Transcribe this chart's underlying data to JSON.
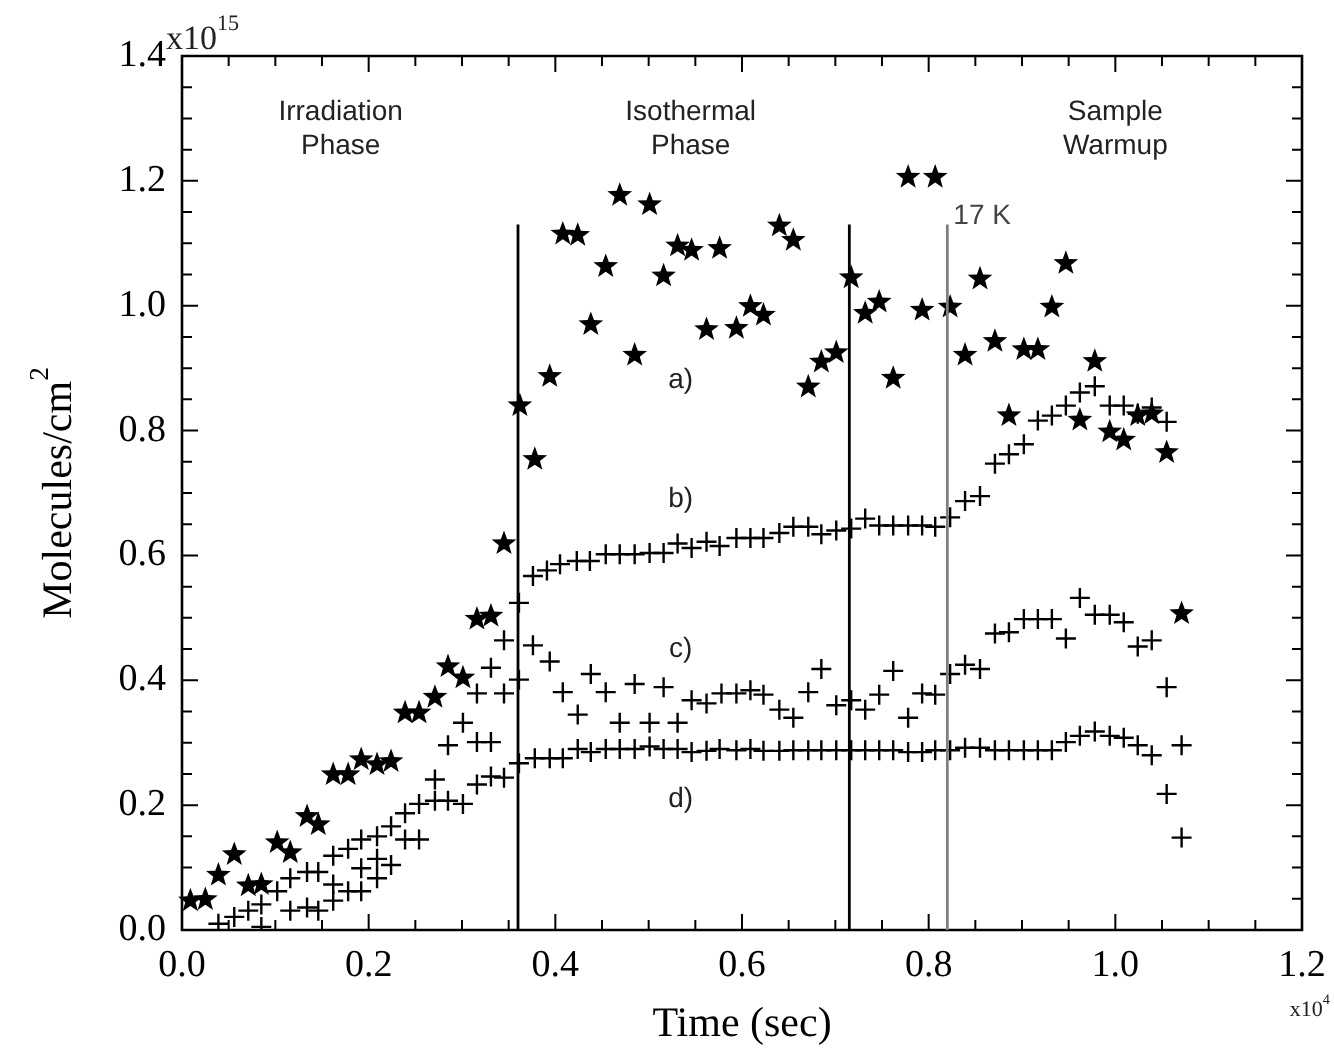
{
  "chart_data": {
    "type": "scatter",
    "xlabel": "Time (sec)",
    "ylabel": "Molecules/cm$^{2}$",
    "xlim": [
      0,
      1.2
    ],
    "ylim": [
      0,
      1.4
    ],
    "xticks": [
      {
        "value": 0,
        "label": "0.0"
      },
      {
        "value": 0.05,
        "label": null
      },
      {
        "value": 0.1,
        "label": null
      },
      {
        "value": 0.15,
        "label": null
      },
      0.2,
      {
        "value": 0.25,
        "label": null
      },
      {
        "value": 0.3,
        "label": null
      },
      {
        "value": 0.35,
        "label": null
      },
      0.4,
      {
        "value": 0.45,
        "label": null
      },
      {
        "value": 0.5,
        "label": null
      },
      {
        "value": 0.55,
        "label": null
      },
      0.6,
      {
        "value": 0.65,
        "label": null
      },
      {
        "value": 0.7,
        "label": null
      },
      {
        "value": 0.75,
        "label": null
      },
      0.8,
      {
        "value": 0.85,
        "label": null
      },
      {
        "value": 0.9,
        "label": null
      },
      {
        "value": 0.95,
        "label": null
      },
      {
        "value": 1.0,
        "label": "1.0"
      },
      {
        "value": 1.05,
        "label": null
      },
      {
        "value": 1.1,
        "label": null
      },
      {
        "value": 1.15,
        "label": null
      },
      1.2
    ],
    "yticks": [
      {
        "value": 0,
        "label": "0.0"
      },
      {
        "value": 0.05,
        "label": null
      },
      {
        "value": 0.1,
        "label": null
      },
      {
        "value": 0.15,
        "label": null
      },
      0.2,
      {
        "value": 0.25,
        "label": null
      },
      {
        "value": 0.3,
        "label": null
      },
      {
        "value": 0.35,
        "label": null
      },
      0.4,
      {
        "value": 0.45,
        "label": null
      },
      {
        "value": 0.5,
        "label": null
      },
      {
        "value": 0.55,
        "label": null
      },
      0.6,
      {
        "value": 0.65,
        "label": null
      },
      {
        "value": 0.7,
        "label": null
      },
      {
        "value": 0.75,
        "label": null
      },
      0.8,
      {
        "value": 0.85,
        "label": null
      },
      {
        "value": 0.9,
        "label": null
      },
      {
        "value": 0.95,
        "label": null
      },
      {
        "value": 1.0,
        "label": "1.0"
      },
      {
        "value": 1.05,
        "label": null
      },
      {
        "value": 1.1,
        "label": null
      },
      {
        "value": 1.15,
        "label": null
      },
      1.2,
      {
        "value": 1.25,
        "label": null
      },
      {
        "value": 1.3,
        "label": null
      },
      {
        "value": 1.35,
        "label": null
      },
      1.4
    ],
    "grid": false,
    "legend": false,
    "ref_lines": [
      {
        "axis": "x",
        "value": 0.36,
        "label": null,
        "color": "#000000"
      },
      {
        "axis": "x",
        "value": 0.715,
        "label": null,
        "color": "#000000"
      },
      {
        "axis": "x",
        "value": 0.82,
        "label": "17 K",
        "color": "#808080"
      }
    ],
    "annotations": [
      "Irradiation Phase",
      "Isothermal Phase",
      "Sample Warmup",
      "x10$^{4}$",
      "x10$^{15}$"
    ],
    "series": [
      {
        "name": "a)",
        "color": "#000000",
        "marker": "star",
        "x": [
          0.009,
          0.025,
          0.039,
          0.056,
          0.071,
          0.085,
          0.102,
          0.116,
          0.134,
          0.146,
          0.162,
          0.178,
          0.192,
          0.209,
          0.224,
          0.239,
          0.254,
          0.271,
          0.285,
          0.301,
          0.316,
          0.331,
          0.345,
          0.362,
          0.378,
          0.394,
          0.408,
          0.424,
          0.438,
          0.454,
          0.469,
          0.485,
          0.501,
          0.516,
          0.531,
          0.546,
          0.562,
          0.576,
          0.594,
          0.609,
          0.623,
          0.64,
          0.655,
          0.671,
          0.685,
          0.701,
          0.717,
          0.732,
          0.747,
          0.762,
          0.778,
          0.793,
          0.807,
          0.823,
          0.839,
          0.855,
          0.871,
          0.886,
          0.902,
          0.917,
          0.932,
          0.947,
          0.962,
          0.978,
          0.994,
          1.009,
          1.024,
          1.039,
          1.055,
          1.071
        ],
        "values": [
          0.047,
          0.049,
          0.088,
          0.121,
          0.071,
          0.073,
          0.14,
          0.124,
          0.182,
          0.169,
          0.249,
          0.249,
          0.273,
          0.265,
          0.27,
          0.348,
          0.348,
          0.373,
          0.422,
          0.404,
          0.498,
          0.503,
          0.619,
          0.84,
          0.754,
          0.887,
          1.115,
          1.113,
          0.97,
          1.063,
          1.177,
          0.921,
          1.162,
          1.048,
          1.096,
          1.089,
          0.962,
          1.092,
          0.964,
          0.999,
          0.985,
          1.128,
          1.105,
          0.87,
          0.91,
          0.925,
          1.045,
          0.988,
          1.006,
          0.884,
          1.206,
          0.993,
          1.206,
          0.998,
          0.921,
          1.043,
          0.943,
          0.824,
          0.93,
          0.93,
          0.998,
          1.068,
          0.817,
          0.911,
          0.798,
          0.785,
          0.824,
          0.827,
          0.765,
          0.507
        ]
      },
      {
        "name": "b)",
        "color": "#000000",
        "marker": "cross",
        "x": [
          0.039,
          0.056,
          0.071,
          0.085,
          0.102,
          0.116,
          0.134,
          0.146,
          0.162,
          0.178,
          0.192,
          0.209,
          0.224,
          0.239,
          0.254,
          0.271,
          0.285,
          0.301,
          0.316,
          0.331,
          0.345,
          0.361,
          0.376,
          0.391,
          0.405,
          0.423,
          0.437,
          0.454,
          0.469,
          0.485,
          0.501,
          0.516,
          0.531,
          0.546,
          0.562,
          0.576,
          0.594,
          0.609,
          0.623,
          0.64,
          0.655,
          0.671,
          0.685,
          0.701,
          0.717,
          0.732,
          0.747,
          0.762,
          0.778,
          0.793,
          0.807,
          0.823,
          0.839,
          0.855,
          0.871,
          0.886,
          0.902,
          0.917,
          0.932,
          0.947,
          0.962,
          0.978,
          0.994,
          1.009,
          1.024,
          1.039,
          1.055
        ],
        "values": [
          0.01,
          0.021,
          0.031,
          0.041,
          0.062,
          0.083,
          0.093,
          0.093,
          0.119,
          0.13,
          0.145,
          0.15,
          0.166,
          0.187,
          0.202,
          0.241,
          0.296,
          0.332,
          0.379,
          0.42,
          0.464,
          0.524,
          0.567,
          0.576,
          0.586,
          0.591,
          0.591,
          0.602,
          0.602,
          0.602,
          0.604,
          0.604,
          0.619,
          0.612,
          0.622,
          0.615,
          0.628,
          0.628,
          0.628,
          0.636,
          0.646,
          0.646,
          0.634,
          0.64,
          0.643,
          0.659,
          0.648,
          0.648,
          0.648,
          0.648,
          0.646,
          0.661,
          0.687,
          0.695,
          0.747,
          0.762,
          0.778,
          0.816,
          0.824,
          0.84,
          0.861,
          0.871,
          0.84,
          0.84,
          0.827,
          0.837,
          0.814
        ]
      },
      {
        "name": "c)",
        "color": "#000000",
        "marker": "cross",
        "x": [
          0.085,
          0.116,
          0.134,
          0.146,
          0.162,
          0.178,
          0.192,
          0.209,
          0.224,
          0.239,
          0.254,
          0.285,
          0.316,
          0.331,
          0.345,
          0.361,
          0.376,
          0.394,
          0.408,
          0.424,
          0.438,
          0.454,
          0.469,
          0.485,
          0.501,
          0.516,
          0.531,
          0.546,
          0.562,
          0.578,
          0.594,
          0.609,
          0.623,
          0.64,
          0.655,
          0.671,
          0.685,
          0.701,
          0.717,
          0.732,
          0.747,
          0.762,
          0.778,
          0.793,
          0.807,
          0.823,
          0.839,
          0.855,
          0.871,
          0.886,
          0.902,
          0.917,
          0.932,
          0.947,
          0.962,
          0.978,
          0.994,
          1.009,
          1.024,
          1.039,
          1.055,
          1.071
        ],
        "values": [
          0.005,
          0.031,
          0.036,
          0.031,
          0.073,
          0.062,
          0.099,
          0.114,
          0.104,
          0.145,
          0.145,
          0.207,
          0.301,
          0.301,
          0.379,
          0.401,
          0.456,
          0.43,
          0.381,
          0.345,
          0.41,
          0.381,
          0.332,
          0.394,
          0.332,
          0.389,
          0.332,
          0.368,
          0.363,
          0.379,
          0.379,
          0.384,
          0.377,
          0.353,
          0.34,
          0.381,
          0.418,
          0.36,
          0.368,
          0.353,
          0.377,
          0.415,
          0.34,
          0.379,
          0.377,
          0.41,
          0.425,
          0.418,
          0.475,
          0.477,
          0.498,
          0.498,
          0.498,
          0.467,
          0.532,
          0.505,
          0.505,
          0.493,
          0.454,
          0.464,
          0.389,
          0.148
        ]
      },
      {
        "name": "d)",
        "color": "#000000",
        "marker": "cross",
        "x": [
          0.162,
          0.192,
          0.209,
          0.271,
          0.301,
          0.316,
          0.331,
          0.345,
          0.361,
          0.378,
          0.394,
          0.408,
          0.424,
          0.438,
          0.454,
          0.469,
          0.485,
          0.501,
          0.516,
          0.531,
          0.546,
          0.562,
          0.576,
          0.594,
          0.609,
          0.623,
          0.64,
          0.655,
          0.671,
          0.685,
          0.701,
          0.717,
          0.732,
          0.747,
          0.762,
          0.778,
          0.793,
          0.807,
          0.823,
          0.839,
          0.855,
          0.871,
          0.886,
          0.902,
          0.917,
          0.932,
          0.947,
          0.962,
          0.978,
          0.994,
          1.009,
          1.024,
          1.039,
          1.055,
          1.071
        ],
        "values": [
          0.047,
          0.062,
          0.083,
          0.207,
          0.202,
          0.233,
          0.246,
          0.244,
          0.267,
          0.275,
          0.275,
          0.275,
          0.29,
          0.285,
          0.29,
          0.29,
          0.29,
          0.294,
          0.29,
          0.29,
          0.285,
          0.287,
          0.29,
          0.288,
          0.29,
          0.287,
          0.287,
          0.288,
          0.288,
          0.288,
          0.288,
          0.288,
          0.288,
          0.288,
          0.288,
          0.285,
          0.285,
          0.288,
          0.288,
          0.292,
          0.292,
          0.288,
          0.288,
          0.288,
          0.288,
          0.288,
          0.301,
          0.311,
          0.318,
          0.311,
          0.308,
          0.296,
          0.28,
          0.218,
          0.296
        ]
      }
    ]
  }
}
